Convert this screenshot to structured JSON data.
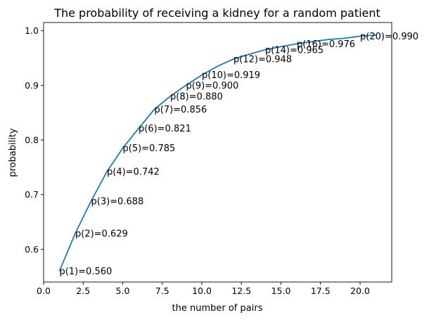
{
  "chart_data": {
    "type": "line",
    "title": "The probability of receiving a kidney for a random patient",
    "xlabel": "the number of pairs",
    "ylabel": "probability",
    "xlim": [
      0,
      22
    ],
    "ylim": [
      0.54,
      1.015
    ],
    "xticks": [
      0.0,
      2.5,
      5.0,
      7.5,
      10.0,
      12.5,
      15.0,
      17.5,
      20.0
    ],
    "xtick_labels": [
      "0.0",
      "2.5",
      "5.0",
      "7.5",
      "10.0",
      "12.5",
      "15.0",
      "17.5",
      "20.0"
    ],
    "yticks": [
      0.6,
      0.7,
      0.8,
      0.9,
      1.0
    ],
    "ytick_labels": [
      "0.6",
      "0.7",
      "0.8",
      "0.9",
      "1.0"
    ],
    "grid": false,
    "line_color": "#1f77b4",
    "x": [
      1,
      2,
      3,
      4,
      5,
      6,
      7,
      8,
      9,
      10,
      11,
      12,
      13,
      14,
      15,
      16,
      17,
      18,
      19,
      20,
      21
    ],
    "y": [
      0.56,
      0.629,
      0.688,
      0.742,
      0.785,
      0.821,
      0.856,
      0.88,
      0.9,
      0.919,
      0.935,
      0.948,
      0.957,
      0.965,
      0.971,
      0.976,
      0.98,
      0.984,
      0.986,
      0.99,
      0.992
    ],
    "annotations": [
      {
        "x": 1,
        "y": 0.56,
        "text": "p(1)=0.560"
      },
      {
        "x": 2,
        "y": 0.629,
        "text": "p(2)=0.629"
      },
      {
        "x": 3,
        "y": 0.688,
        "text": "p(3)=0.688"
      },
      {
        "x": 4,
        "y": 0.742,
        "text": "p(4)=0.742"
      },
      {
        "x": 5,
        "y": 0.785,
        "text": "p(5)=0.785"
      },
      {
        "x": 6,
        "y": 0.821,
        "text": "p(6)=0.821"
      },
      {
        "x": 7,
        "y": 0.856,
        "text": "p(7)=0.856"
      },
      {
        "x": 8,
        "y": 0.88,
        "text": "p(8)=0.880"
      },
      {
        "x": 9,
        "y": 0.9,
        "text": "p(9)=0.900"
      },
      {
        "x": 10,
        "y": 0.919,
        "text": "p(10)=0.919"
      },
      {
        "x": 12,
        "y": 0.948,
        "text": "p(12)=0.948"
      },
      {
        "x": 14,
        "y": 0.965,
        "text": "p(14)=0.965"
      },
      {
        "x": 16,
        "y": 0.976,
        "text": "p(16)=0.976"
      },
      {
        "x": 20,
        "y": 0.99,
        "text": "p(20)=0.990"
      }
    ]
  }
}
